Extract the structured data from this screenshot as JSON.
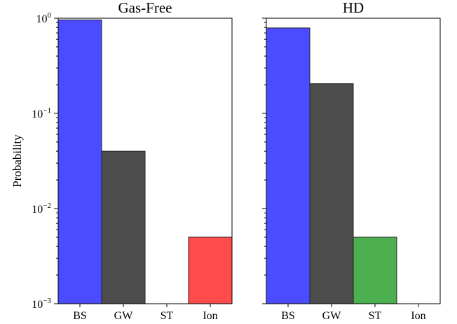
{
  "chart_data": [
    {
      "type": "bar",
      "title": "Gas-Free",
      "ylabel": "Probability",
      "yscale": "log",
      "ylim": [
        0.001,
        1
      ],
      "y_ticks": [
        {
          "base": "10",
          "exp": "0"
        },
        {
          "base": "10",
          "exp": "−1"
        },
        {
          "base": "10",
          "exp": "−2"
        },
        {
          "base": "10",
          "exp": "−3"
        }
      ],
      "categories": [
        "BS",
        "GW",
        "ST",
        "Ion"
      ],
      "values": [
        0.96,
        0.04,
        null,
        0.005
      ],
      "colors": [
        "#4b4bff",
        "#4d4d4d",
        "#4caf50",
        "#ff4b4b"
      ]
    },
    {
      "type": "bar",
      "title": "HD",
      "ylabel": "",
      "yscale": "log",
      "ylim": [
        0.001,
        1
      ],
      "categories": [
        "BS",
        "GW",
        "ST",
        "Ion"
      ],
      "values": [
        0.79,
        0.205,
        0.005,
        null
      ],
      "colors": [
        "#4b4bff",
        "#4d4d4d",
        "#4caf50",
        "#ff4b4b"
      ]
    }
  ]
}
